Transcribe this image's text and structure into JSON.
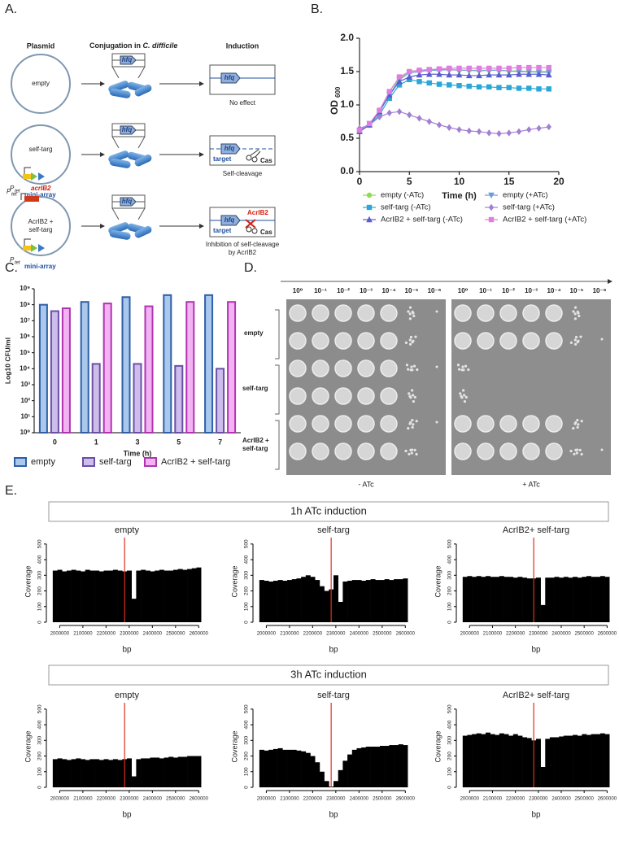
{
  "panel_labels": [
    "A.",
    "B.",
    "C.",
    "D.",
    "E."
  ],
  "diagram": {
    "header_plasmid": "Plasmid",
    "header_conj": "Conjugation in ",
    "header_conj_species": "C. difficile",
    "header_induction": "Induction",
    "rows": [
      {
        "plasmid": "empty",
        "outcome": "No effect"
      },
      {
        "plasmid": "self-targ",
        "outcome": "Self-cleavage"
      },
      {
        "plasmid_lines": [
          "AcrIB2 +",
          "self-targ"
        ],
        "outcome_lines": [
          "Inhibition of self-cleavage",
          "by AcrIB2"
        ]
      }
    ],
    "gene": "hfq",
    "promoter": "P",
    "promoter_sub": "tet",
    "array": "mini-array",
    "anti_gene": "acrIB2",
    "target": "target",
    "cas": "Cas",
    "anti_protein": "AcrIB2"
  },
  "plates": {
    "dilutions": [
      "10⁰",
      "10⁻¹",
      "10⁻²",
      "10⁻³",
      "10⁻⁴",
      "10⁻⁵",
      "10⁻⁶"
    ],
    "rows": [
      "empty",
      "self-targ",
      [
        "AcrIB2 +",
        "self-targ"
      ]
    ],
    "conditions": [
      "- ATc",
      "+ ATc"
    ]
  },
  "panel_e": {
    "groups": [
      "1h ATc induction",
      "3h ATc induction"
    ]
  },
  "chart_data": [
    {
      "type": "line",
      "xlabel": "Time (h)",
      "ylabel": "OD",
      "ylabel_subscript": "600",
      "legend": "below",
      "x": [
        0,
        1,
        2,
        3,
        4,
        5,
        6,
        7,
        8,
        9,
        10,
        11,
        12,
        13,
        14,
        15,
        16,
        17,
        18,
        19
      ],
      "xlim": [
        0,
        20
      ],
      "xticks": [
        0,
        5,
        10,
        15,
        20
      ],
      "ylim": [
        0,
        2
      ],
      "yticks": [
        {
          "value": 0,
          "label": "0.0"
        },
        {
          "value": 0.5,
          "label": "0.5"
        },
        {
          "value": 1,
          "label": "1.0"
        },
        {
          "value": 1.5,
          "label": "1.5"
        },
        {
          "value": 2,
          "label": "2.0"
        }
      ],
      "series": [
        {
          "name": "empty (-ATc)",
          "color": "#8fdc4e",
          "marker": "circle",
          "values": [
            0.6,
            0.7,
            0.9,
            1.2,
            1.4,
            1.5,
            1.52,
            1.53,
            1.53,
            1.53,
            1.52,
            1.52,
            1.52,
            1.52,
            1.52,
            1.51,
            1.51,
            1.5,
            1.5,
            1.5
          ]
        },
        {
          "name": "empty (+ATc)",
          "color": "#6d9ad8",
          "marker": "triangle-down",
          "values": [
            0.62,
            0.72,
            0.9,
            1.15,
            1.38,
            1.48,
            1.5,
            1.52,
            1.52,
            1.53,
            1.52,
            1.52,
            1.51,
            1.52,
            1.52,
            1.51,
            1.5,
            1.5,
            1.49,
            1.49
          ]
        },
        {
          "name": "self-targ (-ATc)",
          "color": "#2aa7d6",
          "marker": "square",
          "values": [
            0.6,
            0.7,
            0.85,
            1.1,
            1.3,
            1.38,
            1.35,
            1.33,
            1.31,
            1.3,
            1.29,
            1.28,
            1.27,
            1.27,
            1.26,
            1.26,
            1.25,
            1.25,
            1.24,
            1.24
          ]
        },
        {
          "name": "self-targ (+ATc)",
          "color": "#a27fd2",
          "marker": "diamond",
          "values": [
            0.65,
            0.7,
            0.82,
            0.88,
            0.9,
            0.85,
            0.8,
            0.75,
            0.7,
            0.66,
            0.63,
            0.61,
            0.6,
            0.58,
            0.57,
            0.58,
            0.6,
            0.63,
            0.65,
            0.67
          ]
        },
        {
          "name": "AcrIB2 + self-targ (-ATc)",
          "color": "#5a5cd0",
          "marker": "triangle",
          "values": [
            0.6,
            0.7,
            0.9,
            1.15,
            1.35,
            1.42,
            1.45,
            1.46,
            1.46,
            1.45,
            1.45,
            1.44,
            1.44,
            1.45,
            1.45,
            1.45,
            1.46,
            1.46,
            1.46,
            1.45
          ]
        },
        {
          "name": "AcrIB2 + self-targ (+ATc)",
          "color": "#e07ee0",
          "marker": "square",
          "values": [
            0.62,
            0.72,
            0.92,
            1.2,
            1.42,
            1.5,
            1.52,
            1.53,
            1.54,
            1.55,
            1.55,
            1.55,
            1.55,
            1.55,
            1.55,
            1.55,
            1.56,
            1.56,
            1.56,
            1.56
          ]
        }
      ]
    },
    {
      "type": "bar",
      "xlabel": "Time (h)",
      "ylabel": "Log10 CFU/ml",
      "log": true,
      "legend": "below",
      "categories": [
        "0",
        "1",
        "3",
        "5",
        "7"
      ],
      "ylim": [
        1,
        1000000000
      ],
      "yticks": [
        {
          "value": 1,
          "label": "10⁰"
        },
        {
          "value": 10,
          "label": "10¹"
        },
        {
          "value": 100,
          "label": "10²"
        },
        {
          "value": 1000,
          "label": "10³"
        },
        {
          "value": 10000,
          "label": "10⁴"
        },
        {
          "value": 100000,
          "label": "10⁵"
        },
        {
          "value": 1000000,
          "label": "10⁶"
        },
        {
          "value": 10000000,
          "label": "10⁷"
        },
        {
          "value": 100000000,
          "label": "10⁸"
        },
        {
          "value": 1000000000,
          "label": "10⁹"
        }
      ],
      "series": [
        {
          "name": "empty",
          "color": "#a9c8ec",
          "edge": "#2f5fa8",
          "values": [
            100000000,
            150000000,
            300000000,
            400000000,
            400000000
          ]
        },
        {
          "name": "self-targ",
          "color": "#cdbdea",
          "edge": "#6a4fa8",
          "values": [
            40000000,
            20000,
            20000,
            15000,
            10000
          ]
        },
        {
          "name": "AcrIB2 + self-targ",
          "color": "#f2b3f2",
          "edge": "#b233b2",
          "values": [
            60000000,
            120000000,
            80000000,
            150000000,
            150000000
          ]
        }
      ]
    },
    {
      "type": "area",
      "title": "empty",
      "xlabel": "bp",
      "ylabel": "Coverage",
      "color": "#000000",
      "vline": {
        "value": 2280000,
        "color": "#e0301e"
      },
      "x": [
        1980000,
        2000000,
        2020000,
        2040000,
        2060000,
        2080000,
        2100000,
        2120000,
        2140000,
        2160000,
        2180000,
        2200000,
        2220000,
        2240000,
        2260000,
        2280000,
        2300000,
        2320000,
        2340000,
        2360000,
        2380000,
        2400000,
        2420000,
        2440000,
        2460000,
        2480000,
        2500000,
        2520000,
        2540000,
        2560000,
        2580000,
        2600000
      ],
      "values": [
        330,
        335,
        325,
        330,
        335,
        330,
        325,
        335,
        330,
        330,
        325,
        330,
        330,
        335,
        330,
        325,
        330,
        150,
        330,
        335,
        330,
        325,
        330,
        335,
        330,
        330,
        335,
        340,
        335,
        340,
        345,
        350
      ],
      "xlim": [
        1960000,
        2620000
      ],
      "xticks": [
        2000000,
        2100000,
        2200000,
        2300000,
        2400000,
        2500000,
        2600000
      ],
      "ylim": [
        0,
        520
      ],
      "yticks": [
        0,
        100,
        200,
        300,
        400,
        500
      ]
    },
    {
      "type": "area",
      "title": "self-targ",
      "xlabel": "bp",
      "ylabel": "Coverage",
      "color": "#000000",
      "vline": {
        "value": 2280000,
        "color": "#e0301e"
      },
      "x": [
        1980000,
        2000000,
        2020000,
        2040000,
        2060000,
        2080000,
        2100000,
        2120000,
        2140000,
        2160000,
        2180000,
        2200000,
        2220000,
        2240000,
        2260000,
        2280000,
        2300000,
        2320000,
        2340000,
        2360000,
        2380000,
        2400000,
        2420000,
        2440000,
        2460000,
        2480000,
        2500000,
        2520000,
        2540000,
        2560000,
        2580000,
        2600000
      ],
      "values": [
        270,
        265,
        260,
        265,
        270,
        265,
        270,
        275,
        280,
        290,
        300,
        290,
        270,
        230,
        200,
        210,
        300,
        130,
        260,
        265,
        270,
        270,
        265,
        270,
        275,
        270,
        270,
        275,
        270,
        275,
        275,
        280
      ],
      "xlim": [
        1960000,
        2620000
      ],
      "xticks": [
        2000000,
        2100000,
        2200000,
        2300000,
        2400000,
        2500000,
        2600000
      ],
      "ylim": [
        0,
        520
      ],
      "yticks": [
        0,
        100,
        200,
        300,
        400,
        500
      ]
    },
    {
      "type": "area",
      "title": "AcrIB2+ self-targ",
      "xlabel": "bp",
      "ylabel": "Coverage",
      "color": "#000000",
      "vline": {
        "value": 2280000,
        "color": "#e0301e"
      },
      "x": [
        1980000,
        2000000,
        2020000,
        2040000,
        2060000,
        2080000,
        2100000,
        2120000,
        2140000,
        2160000,
        2180000,
        2200000,
        2220000,
        2240000,
        2260000,
        2280000,
        2300000,
        2320000,
        2340000,
        2360000,
        2380000,
        2400000,
        2420000,
        2440000,
        2460000,
        2480000,
        2500000,
        2520000,
        2540000,
        2560000,
        2580000,
        2600000
      ],
      "values": [
        290,
        295,
        290,
        295,
        290,
        295,
        290,
        290,
        295,
        290,
        290,
        285,
        290,
        285,
        280,
        280,
        285,
        110,
        285,
        285,
        290,
        285,
        290,
        285,
        290,
        285,
        290,
        295,
        290,
        290,
        295,
        290
      ],
      "xlim": [
        1960000,
        2620000
      ],
      "xticks": [
        2000000,
        2100000,
        2200000,
        2300000,
        2400000,
        2500000,
        2600000
      ],
      "ylim": [
        0,
        520
      ],
      "yticks": [
        0,
        100,
        200,
        300,
        400,
        500
      ]
    },
    {
      "type": "area",
      "title": "empty",
      "xlabel": "bp",
      "ylabel": "Coverage",
      "color": "#000000",
      "vline": {
        "value": 2280000,
        "color": "#e0301e"
      },
      "x": [
        1980000,
        2000000,
        2020000,
        2040000,
        2060000,
        2080000,
        2100000,
        2120000,
        2140000,
        2160000,
        2180000,
        2200000,
        2220000,
        2240000,
        2260000,
        2280000,
        2300000,
        2320000,
        2340000,
        2360000,
        2380000,
        2400000,
        2420000,
        2440000,
        2460000,
        2480000,
        2500000,
        2520000,
        2540000,
        2560000,
        2580000,
        2600000
      ],
      "values": [
        180,
        185,
        180,
        175,
        180,
        185,
        180,
        175,
        180,
        180,
        175,
        180,
        175,
        180,
        175,
        180,
        185,
        70,
        180,
        185,
        185,
        190,
        190,
        185,
        190,
        195,
        190,
        195,
        195,
        200,
        200,
        200
      ],
      "xlim": [
        1960000,
        2620000
      ],
      "xticks": [
        2000000,
        2100000,
        2200000,
        2300000,
        2400000,
        2500000,
        2600000
      ],
      "ylim": [
        0,
        520
      ],
      "yticks": [
        0,
        100,
        200,
        300,
        400,
        500
      ]
    },
    {
      "type": "area",
      "title": "self-targ",
      "xlabel": "bp",
      "ylabel": "Coverage",
      "color": "#000000",
      "vline": {
        "value": 2280000,
        "color": "#e0301e"
      },
      "x": [
        1980000,
        2000000,
        2020000,
        2040000,
        2060000,
        2080000,
        2100000,
        2120000,
        2140000,
        2160000,
        2180000,
        2200000,
        2220000,
        2240000,
        2260000,
        2280000,
        2300000,
        2320000,
        2340000,
        2360000,
        2380000,
        2400000,
        2420000,
        2440000,
        2460000,
        2480000,
        2500000,
        2520000,
        2540000,
        2560000,
        2580000,
        2600000
      ],
      "values": [
        240,
        235,
        240,
        245,
        250,
        240,
        240,
        240,
        235,
        230,
        220,
        200,
        160,
        100,
        40,
        5,
        40,
        110,
        170,
        210,
        240,
        250,
        255,
        260,
        260,
        260,
        265,
        265,
        270,
        270,
        275,
        270
      ],
      "xlim": [
        1960000,
        2620000
      ],
      "xticks": [
        2000000,
        2100000,
        2200000,
        2300000,
        2400000,
        2500000,
        2600000
      ],
      "ylim": [
        0,
        520
      ],
      "yticks": [
        0,
        100,
        200,
        300,
        400,
        500
      ]
    },
    {
      "type": "area",
      "title": "AcrIB2+ self-targ",
      "xlabel": "bp",
      "ylabel": "Coverage",
      "color": "#000000",
      "vline": {
        "value": 2280000,
        "color": "#e0301e"
      },
      "x": [
        1980000,
        2000000,
        2020000,
        2040000,
        2060000,
        2080000,
        2100000,
        2120000,
        2140000,
        2160000,
        2180000,
        2200000,
        2220000,
        2240000,
        2260000,
        2280000,
        2300000,
        2320000,
        2340000,
        2360000,
        2380000,
        2400000,
        2420000,
        2440000,
        2460000,
        2480000,
        2500000,
        2520000,
        2540000,
        2560000,
        2580000,
        2600000
      ],
      "values": [
        330,
        335,
        340,
        345,
        340,
        350,
        340,
        335,
        345,
        340,
        330,
        340,
        330,
        320,
        315,
        300,
        310,
        130,
        310,
        320,
        320,
        325,
        330,
        330,
        335,
        330,
        340,
        335,
        340,
        340,
        345,
        340
      ],
      "xlim": [
        1960000,
        2620000
      ],
      "xticks": [
        2000000,
        2100000,
        2200000,
        2300000,
        2400000,
        2500000,
        2600000
      ],
      "ylim": [
        0,
        520
      ],
      "yticks": [
        0,
        100,
        200,
        300,
        400,
        500
      ]
    }
  ]
}
